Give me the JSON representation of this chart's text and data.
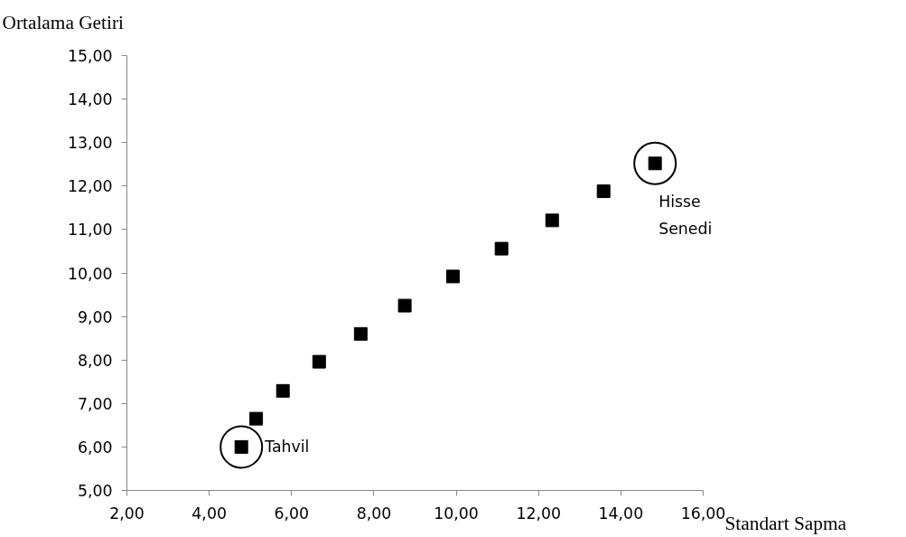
{
  "chart_data": {
    "type": "scatter",
    "xlabel": "Standart Sapma",
    "ylabel": "Ortalama Getiri",
    "x": [
      4.78,
      5.14,
      5.79,
      6.67,
      7.68,
      8.75,
      9.92,
      11.1,
      12.33,
      13.58,
      14.83
    ],
    "series": [
      {
        "color": "#000000",
        "values": [
          6.0,
          6.65,
          7.29,
          7.96,
          8.6,
          9.25,
          9.92,
          10.56,
          11.21,
          11.88,
          12.52
        ]
      }
    ],
    "marker": "square",
    "xlim": [
      2,
      16
    ],
    "xticks": [
      {
        "value": 2,
        "label": "2,00"
      },
      {
        "value": 4,
        "label": "4,00"
      },
      {
        "value": 6,
        "label": "6,00"
      },
      {
        "value": 8,
        "label": "8,00"
      },
      {
        "value": 10,
        "label": "10,00"
      },
      {
        "value": 12,
        "label": "12,00"
      },
      {
        "value": 14,
        "label": "14,00"
      },
      {
        "value": 16,
        "label": "16,00"
      }
    ],
    "ylim": [
      5,
      15
    ],
    "yticks": [
      {
        "value": 5,
        "label": "5,00"
      },
      {
        "value": 6,
        "label": "6,00"
      },
      {
        "value": 7,
        "label": "7,00"
      },
      {
        "value": 8,
        "label": "8,00"
      },
      {
        "value": 9,
        "label": "9,00"
      },
      {
        "value": 10,
        "label": "10,00"
      },
      {
        "value": 11,
        "label": "11,00"
      },
      {
        "value": 12,
        "label": "12,00"
      },
      {
        "value": 13,
        "label": "13,00"
      },
      {
        "value": 14,
        "label": "14,00"
      },
      {
        "value": 15,
        "label": "15,00"
      }
    ],
    "annotations": [
      {
        "text": "Tahvil",
        "x": 4.78,
        "y": 6.0
      },
      {
        "text": "Hisse Senedi",
        "x": 14.83,
        "y": 12.52
      }
    ]
  }
}
